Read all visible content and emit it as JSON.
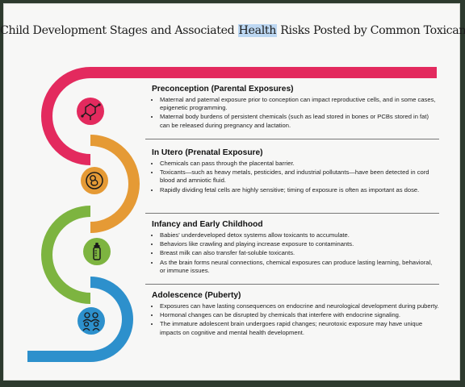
{
  "title": {
    "before": "Child Development Stages and Associated ",
    "highlight": "Health",
    "after": " Risks Posted by Common Toxicants"
  },
  "colors": {
    "preconception": "#e32a5e",
    "in_utero": "#e59a35",
    "infancy": "#7db440",
    "adolescence": "#2d90cc"
  },
  "sections": [
    {
      "heading": "Preconception (Parental Exposures)",
      "icon": "molecule-icon",
      "bullets": [
        "Maternal and paternal exposure prior to conception can impact reproductive cells, and in some cases, epigenetic programming.",
        "Maternal body burdens of persistent chemicals (such as lead stored in bones or PCBs stored in fat) can be released during pregnancy and lactation."
      ]
    },
    {
      "heading": "In Utero (Prenatal Exposure)",
      "icon": "fetus-icon",
      "bullets": [
        "Chemicals can pass through the placental barrier.",
        "Toxicants—such as heavy metals, pesticides, and industrial pollutants—have been detected in cord blood and amniotic fluid.",
        "Rapidly dividing fetal cells are highly sensitive; timing of exposure is often as important as dose."
      ]
    },
    {
      "heading": "Infancy and Early Childhood",
      "icon": "baby-bottle-icon",
      "bullets": [
        "Babies' underdeveloped detox systems allow toxicants to accumulate.",
        "Behaviors like crawling and playing increase exposure to contaminants.",
        "Breast milk can also transfer fat-soluble toxicants.",
        "As the brain forms neural connections, chemical exposures can produce lasting learning, behavioral, or immune issues."
      ]
    },
    {
      "heading": "Adolescence (Puberty)",
      "icon": "group-of-people-icon",
      "bullets": [
        "Exposures can have lasting consequences on endocrine and neurological development during puberty.",
        "Hormonal changes can be disrupted by chemicals that interfere with endocrine signaling.",
        "The immature adolescent brain undergoes rapid changes; neurotoxic exposure may have unique impacts on cognitive and mental health development."
      ]
    }
  ]
}
